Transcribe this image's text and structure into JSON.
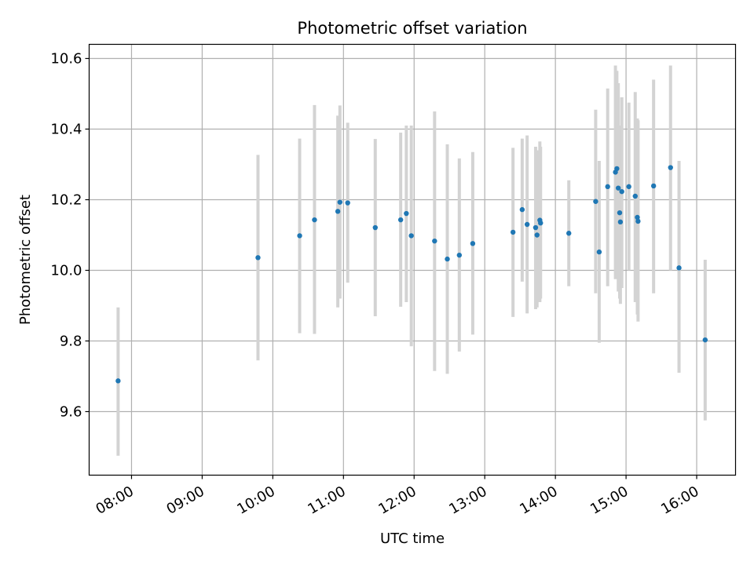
{
  "chart_data": {
    "type": "scatter",
    "title": "Photometric offset variation",
    "xlabel": "UTC time",
    "ylabel": "Photometric offset",
    "x_unit": "hours UTC",
    "xlim": [
      7.4,
      16.55
    ],
    "ylim": [
      9.42,
      10.64
    ],
    "grid": true,
    "x_ticks": [
      {
        "value": 8,
        "label": "08:00"
      },
      {
        "value": 9,
        "label": "09:00"
      },
      {
        "value": 10,
        "label": "10:00"
      },
      {
        "value": 11,
        "label": "11:00"
      },
      {
        "value": 12,
        "label": "12:00"
      },
      {
        "value": 13,
        "label": "13:00"
      },
      {
        "value": 14,
        "label": "14:00"
      },
      {
        "value": 15,
        "label": "15:00"
      },
      {
        "value": 16,
        "label": "16:00"
      }
    ],
    "y_ticks": [
      {
        "value": 9.6,
        "label": "9.6"
      },
      {
        "value": 9.8,
        "label": "9.8"
      },
      {
        "value": 10.0,
        "label": "10.0"
      },
      {
        "value": 10.2,
        "label": "10.2"
      },
      {
        "value": 10.4,
        "label": "10.4"
      },
      {
        "value": 10.6,
        "label": "10.6"
      }
    ],
    "marker_color": "#1f77b4",
    "errorbar_color": "#d3d3d3",
    "series": [
      {
        "name": "offset",
        "points": [
          {
            "x": 7.81,
            "y": 9.687,
            "lo": 9.475,
            "hi": 9.895
          },
          {
            "x": 9.79,
            "y": 10.036,
            "lo": 9.745,
            "hi": 10.327
          },
          {
            "x": 10.38,
            "y": 10.098,
            "lo": 9.822,
            "hi": 10.373
          },
          {
            "x": 10.59,
            "y": 10.143,
            "lo": 9.82,
            "hi": 10.468
          },
          {
            "x": 10.92,
            "y": 10.167,
            "lo": 9.895,
            "hi": 10.438
          },
          {
            "x": 10.95,
            "y": 10.193,
            "lo": 9.92,
            "hi": 10.467
          },
          {
            "x": 11.06,
            "y": 10.191,
            "lo": 9.965,
            "hi": 10.418
          },
          {
            "x": 11.45,
            "y": 10.121,
            "lo": 9.87,
            "hi": 10.372
          },
          {
            "x": 11.81,
            "y": 10.143,
            "lo": 9.897,
            "hi": 10.39
          },
          {
            "x": 11.89,
            "y": 10.161,
            "lo": 9.91,
            "hi": 10.41
          },
          {
            "x": 11.96,
            "y": 10.098,
            "lo": 9.785,
            "hi": 10.41
          },
          {
            "x": 12.29,
            "y": 10.083,
            "lo": 9.715,
            "hi": 10.45
          },
          {
            "x": 12.47,
            "y": 10.032,
            "lo": 9.707,
            "hi": 10.357
          },
          {
            "x": 12.64,
            "y": 10.043,
            "lo": 9.77,
            "hi": 10.317
          },
          {
            "x": 12.83,
            "y": 10.076,
            "lo": 9.818,
            "hi": 10.335
          },
          {
            "x": 13.4,
            "y": 10.108,
            "lo": 9.868,
            "hi": 10.347
          },
          {
            "x": 13.53,
            "y": 10.172,
            "lo": 9.968,
            "hi": 10.373
          },
          {
            "x": 13.6,
            "y": 10.13,
            "lo": 9.878,
            "hi": 10.382
          },
          {
            "x": 13.72,
            "y": 10.121,
            "lo": 9.89,
            "hi": 10.35
          },
          {
            "x": 13.74,
            "y": 10.1,
            "lo": 9.895,
            "hi": 10.34
          },
          {
            "x": 13.78,
            "y": 10.142,
            "lo": 9.91,
            "hi": 10.365
          },
          {
            "x": 13.79,
            "y": 10.134,
            "lo": 9.92,
            "hi": 10.35
          },
          {
            "x": 14.19,
            "y": 10.105,
            "lo": 9.955,
            "hi": 10.255
          },
          {
            "x": 14.57,
            "y": 10.195,
            "lo": 9.935,
            "hi": 10.455
          },
          {
            "x": 14.62,
            "y": 10.052,
            "lo": 9.795,
            "hi": 10.31
          },
          {
            "x": 14.74,
            "y": 10.237,
            "lo": 9.955,
            "hi": 10.515
          },
          {
            "x": 14.85,
            "y": 10.278,
            "lo": 9.975,
            "hi": 10.58
          },
          {
            "x": 14.87,
            "y": 10.288,
            "lo": 9.99,
            "hi": 10.565
          },
          {
            "x": 14.89,
            "y": 10.233,
            "lo": 9.94,
            "hi": 10.53
          },
          {
            "x": 14.91,
            "y": 10.163,
            "lo": 9.92,
            "hi": 10.41
          },
          {
            "x": 14.92,
            "y": 10.137,
            "lo": 9.905,
            "hi": 10.37
          },
          {
            "x": 14.94,
            "y": 10.223,
            "lo": 9.95,
            "hi": 10.49
          },
          {
            "x": 15.04,
            "y": 10.237,
            "lo": 10.0,
            "hi": 10.475
          },
          {
            "x": 15.13,
            "y": 10.21,
            "lo": 9.91,
            "hi": 10.505
          },
          {
            "x": 15.16,
            "y": 10.15,
            "lo": 9.875,
            "hi": 10.43
          },
          {
            "x": 15.17,
            "y": 10.139,
            "lo": 9.855,
            "hi": 10.425
          },
          {
            "x": 15.39,
            "y": 10.239,
            "lo": 9.935,
            "hi": 10.54
          },
          {
            "x": 15.63,
            "y": 10.291,
            "lo": 10.0,
            "hi": 10.58
          },
          {
            "x": 15.75,
            "y": 10.007,
            "lo": 9.71,
            "hi": 10.31
          },
          {
            "x": 16.12,
            "y": 9.803,
            "lo": 9.575,
            "hi": 10.03
          }
        ]
      }
    ]
  }
}
